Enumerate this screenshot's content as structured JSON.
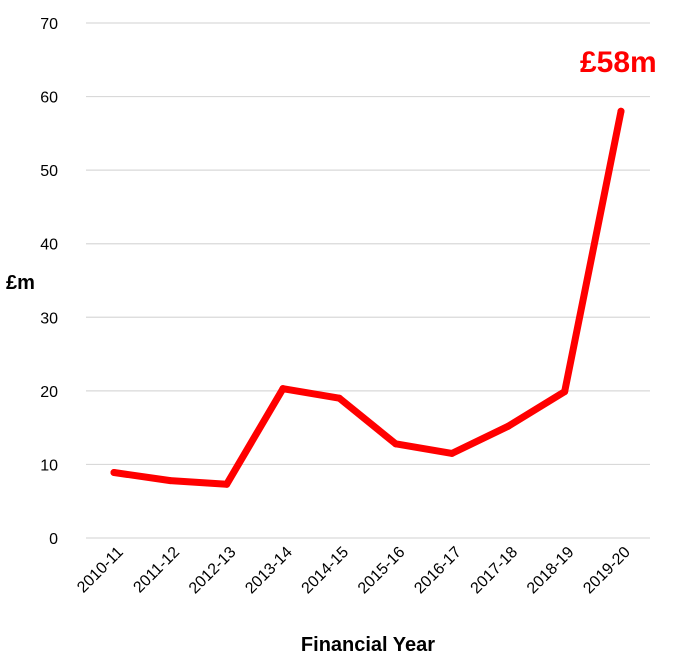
{
  "chart_data": {
    "type": "line",
    "xlabel": "Financial Year",
    "ylabel": "£m",
    "categories": [
      "2010-11",
      "2011-12",
      "2012-13",
      "2013-14",
      "2014-15",
      "2015-16",
      "2016-17",
      "2017-18",
      "2018-19",
      "2019-20"
    ],
    "series": [
      {
        "values": [
          8.9,
          7.8,
          7.3,
          20.3,
          19.0,
          12.8,
          11.5,
          15.2,
          19.9,
          58.0
        ]
      }
    ],
    "ylim": [
      0,
      70
    ],
    "yticks": [
      0,
      10,
      20,
      30,
      40,
      50,
      60,
      70
    ],
    "grid": true,
    "line_color": "#ff0000",
    "annotation": {
      "text": "£58m",
      "category": "2019-20",
      "color": "#ff0000"
    }
  }
}
